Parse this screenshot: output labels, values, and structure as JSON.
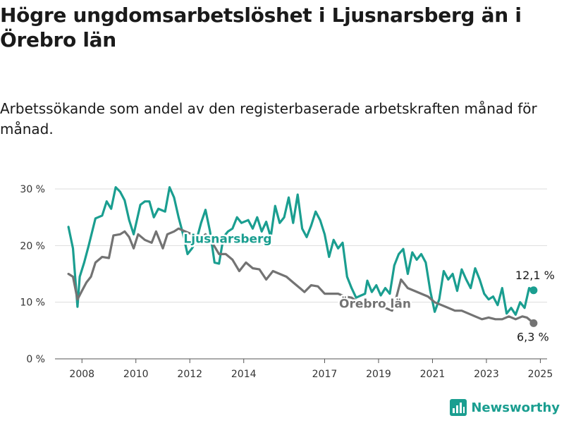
{
  "title": "Högre ungdomsarbetslöshet i Ljusnarsberg än i Örebro län",
  "subtitle": "Arbetssökande som andel av den registerbaserade arbetskraften månad för månad.",
  "brand": {
    "name": "Newsworthy",
    "icon": "newsworthy-logo-icon"
  },
  "chart_data": {
    "type": "line",
    "x_ticks": [
      "2008",
      "2010",
      "2012",
      "2014",
      "2017",
      "2019",
      "2021",
      "2023",
      "2025"
    ],
    "y_ticks": [
      "0 %",
      "10 %",
      "20 %",
      "30 %"
    ],
    "ylim": [
      0,
      30
    ],
    "grid": true,
    "legend": "inline labels",
    "series": [
      {
        "name": "Ljusnarsberg",
        "color": "#1a9e90",
        "end_label": "12,1 %",
        "points": [
          [
            "2008-01",
            23.3
          ],
          [
            "2008-03",
            19.5
          ],
          [
            "2008-05",
            9.2
          ],
          [
            "2008-06",
            14.5
          ],
          [
            "2008-08",
            17.0
          ],
          [
            "2008-10",
            20.0
          ],
          [
            "2009-01",
            24.8
          ],
          [
            "2009-04",
            25.3
          ],
          [
            "2009-06",
            27.8
          ],
          [
            "2009-08",
            26.5
          ],
          [
            "2009-10",
            30.3
          ],
          [
            "2009-12",
            29.5
          ],
          [
            "2010-02",
            28.0
          ],
          [
            "2010-04",
            24.5
          ],
          [
            "2010-06",
            22.0
          ],
          [
            "2010-09",
            27.2
          ],
          [
            "2010-11",
            27.8
          ],
          [
            "2011-01",
            27.8
          ],
          [
            "2011-03",
            25.0
          ],
          [
            "2011-05",
            26.5
          ],
          [
            "2011-08",
            26.0
          ],
          [
            "2011-10",
            30.3
          ],
          [
            "2011-12",
            28.5
          ],
          [
            "2012-02",
            25.0
          ],
          [
            "2012-04",
            22.0
          ],
          [
            "2012-06",
            18.5
          ],
          [
            "2012-08",
            19.5
          ],
          [
            "2012-10",
            21.0
          ],
          [
            "2012-12",
            24.0
          ],
          [
            "2013-02",
            26.3
          ],
          [
            "2013-04",
            22.5
          ],
          [
            "2013-06",
            17.0
          ],
          [
            "2013-08",
            16.8
          ],
          [
            "2013-10",
            21.5
          ],
          [
            "2013-12",
            22.5
          ],
          [
            "2014-02",
            23.0
          ],
          [
            "2014-04",
            25.0
          ],
          [
            "2014-06",
            24.0
          ],
          [
            "2014-09",
            24.5
          ],
          [
            "2014-11",
            23.0
          ],
          [
            "2015-01",
            25.0
          ],
          [
            "2015-03",
            22.5
          ],
          [
            "2015-05",
            24.2
          ],
          [
            "2015-07",
            21.5
          ],
          [
            "2015-09",
            27.0
          ],
          [
            "2015-11",
            24.0
          ],
          [
            "2016-01",
            25.0
          ],
          [
            "2016-03",
            28.5
          ],
          [
            "2016-05",
            24.0
          ],
          [
            "2016-07",
            29.0
          ],
          [
            "2016-09",
            23.0
          ],
          [
            "2016-11",
            21.5
          ],
          [
            "2017-01",
            23.5
          ],
          [
            "2017-03",
            26.0
          ],
          [
            "2017-05",
            24.5
          ],
          [
            "2017-07",
            22.0
          ],
          [
            "2017-09",
            18.0
          ],
          [
            "2017-11",
            21.0
          ],
          [
            "2018-01",
            19.5
          ],
          [
            "2018-03",
            20.5
          ],
          [
            "2018-05",
            14.5
          ],
          [
            "2018-07",
            12.5
          ],
          [
            "2018-09",
            10.8
          ],
          [
            "2019-01",
            11.5
          ],
          [
            "2019-02",
            13.8
          ],
          [
            "2019-04",
            11.8
          ],
          [
            "2019-06",
            13.0
          ],
          [
            "2019-08",
            11.2
          ],
          [
            "2019-10",
            12.5
          ],
          [
            "2019-12",
            11.5
          ],
          [
            "2020-02",
            16.5
          ],
          [
            "2020-04",
            18.5
          ],
          [
            "2020-06",
            19.4
          ],
          [
            "2020-08",
            15.0
          ],
          [
            "2020-10",
            18.8
          ],
          [
            "2020-12",
            17.5
          ],
          [
            "2021-02",
            18.5
          ],
          [
            "2021-04",
            17.0
          ],
          [
            "2021-06",
            12.0
          ],
          [
            "2021-08",
            8.3
          ],
          [
            "2021-10",
            10.5
          ],
          [
            "2021-12",
            15.5
          ],
          [
            "2022-02",
            14.0
          ],
          [
            "2022-04",
            15.0
          ],
          [
            "2022-06",
            12.0
          ],
          [
            "2022-08",
            15.8
          ],
          [
            "2022-10",
            14.0
          ],
          [
            "2022-12",
            12.5
          ],
          [
            "2023-02",
            16.0
          ],
          [
            "2023-04",
            14.0
          ],
          [
            "2023-06",
            11.5
          ],
          [
            "2023-08",
            10.5
          ],
          [
            "2023-10",
            11.0
          ],
          [
            "2023-12",
            9.5
          ],
          [
            "2024-02",
            12.5
          ],
          [
            "2024-04",
            8.0
          ],
          [
            "2024-06",
            9.0
          ],
          [
            "2024-08",
            7.8
          ],
          [
            "2024-10",
            10.0
          ],
          [
            "2024-12",
            9.0
          ],
          [
            "2025-02",
            12.5
          ],
          [
            "2025-04",
            12.1
          ]
        ]
      },
      {
        "name": "Örebro län",
        "color": "#737373",
        "end_label": "6,3 %",
        "points": [
          [
            "2008-01",
            15.0
          ],
          [
            "2008-03",
            14.5
          ],
          [
            "2008-05",
            10.5
          ],
          [
            "2008-07",
            12.0
          ],
          [
            "2008-09",
            13.5
          ],
          [
            "2008-11",
            14.5
          ],
          [
            "2009-01",
            17.0
          ],
          [
            "2009-04",
            18.0
          ],
          [
            "2009-07",
            17.8
          ],
          [
            "2009-09",
            21.8
          ],
          [
            "2009-12",
            22.0
          ],
          [
            "2010-02",
            22.5
          ],
          [
            "2010-04",
            21.5
          ],
          [
            "2010-06",
            19.5
          ],
          [
            "2010-08",
            22.0
          ],
          [
            "2010-11",
            21.0
          ],
          [
            "2011-02",
            20.5
          ],
          [
            "2011-04",
            22.5
          ],
          [
            "2011-07",
            19.5
          ],
          [
            "2011-09",
            22.0
          ],
          [
            "2011-12",
            22.5
          ],
          [
            "2012-02",
            23.0
          ],
          [
            "2012-05",
            22.5
          ],
          [
            "2012-08",
            22.0
          ],
          [
            "2012-11",
            21.0
          ],
          [
            "2013-02",
            22.0
          ],
          [
            "2013-05",
            20.5
          ],
          [
            "2013-08",
            18.5
          ],
          [
            "2013-11",
            18.5
          ],
          [
            "2014-02",
            17.5
          ],
          [
            "2014-05",
            15.5
          ],
          [
            "2014-08",
            17.0
          ],
          [
            "2014-11",
            16.0
          ],
          [
            "2015-02",
            15.8
          ],
          [
            "2015-05",
            14.0
          ],
          [
            "2015-08",
            15.5
          ],
          [
            "2015-11",
            15.0
          ],
          [
            "2016-02",
            14.5
          ],
          [
            "2016-05",
            13.5
          ],
          [
            "2016-08",
            12.5
          ],
          [
            "2016-10",
            11.8
          ],
          [
            "2017-01",
            13.0
          ],
          [
            "2017-04",
            12.8
          ],
          [
            "2017-07",
            11.5
          ],
          [
            "2017-10",
            11.5
          ],
          [
            "2018-01",
            11.5
          ],
          [
            "2018-04",
            11.0
          ],
          [
            "2018-07",
            10.8
          ],
          [
            "2018-10",
            10.0
          ],
          [
            "2019-01",
            9.8
          ],
          [
            "2019-04",
            9.5
          ],
          [
            "2019-07",
            9.5
          ],
          [
            "2019-10",
            9.0
          ],
          [
            "2020-01",
            8.5
          ],
          [
            "2020-03",
            11.0
          ],
          [
            "2020-05",
            14.0
          ],
          [
            "2020-08",
            12.5
          ],
          [
            "2020-11",
            12.0
          ],
          [
            "2021-02",
            11.5
          ],
          [
            "2021-05",
            11.0
          ],
          [
            "2021-08",
            10.0
          ],
          [
            "2021-11",
            9.5
          ],
          [
            "2022-02",
            9.0
          ],
          [
            "2022-05",
            8.5
          ],
          [
            "2022-08",
            8.5
          ],
          [
            "2022-11",
            8.0
          ],
          [
            "2023-02",
            7.5
          ],
          [
            "2023-05",
            7.0
          ],
          [
            "2023-08",
            7.3
          ],
          [
            "2023-11",
            7.0
          ],
          [
            "2024-02",
            7.0
          ],
          [
            "2024-05",
            7.5
          ],
          [
            "2024-08",
            7.0
          ],
          [
            "2024-11",
            7.5
          ],
          [
            "2025-01",
            7.3
          ],
          [
            "2025-04",
            6.3
          ]
        ]
      }
    ]
  }
}
